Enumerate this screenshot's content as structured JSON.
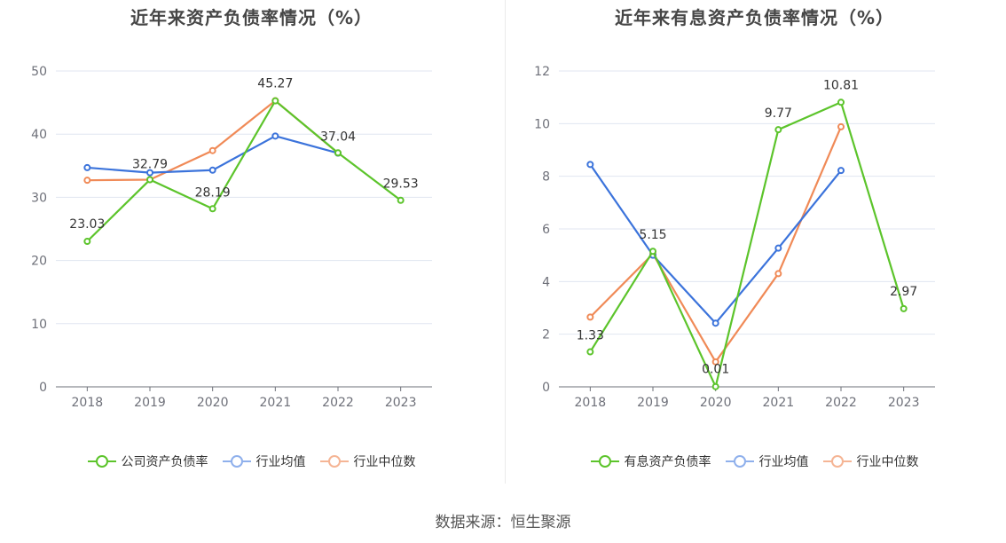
{
  "source": "数据来源：恒生聚源",
  "chart_data": [
    {
      "type": "line",
      "title": "近年来资产负债率情况（%）",
      "categories": [
        "2018",
        "2019",
        "2020",
        "2021",
        "2022",
        "2023"
      ],
      "ylim": [
        0,
        50
      ],
      "yticks": [
        0,
        10,
        20,
        30,
        40,
        50
      ],
      "series": [
        {
          "name": "公司资产负债率",
          "color": "#5cc42b",
          "values": [
            23.03,
            32.79,
            28.19,
            45.27,
            37.04,
            29.53
          ],
          "labels": [
            "23.03",
            "32.79",
            "28.19",
            "45.27",
            "37.04",
            "29.53"
          ]
        },
        {
          "name": "行业均值",
          "color": "#3b73db",
          "values": [
            34.7,
            33.9,
            34.3,
            39.7,
            37.0,
            null
          ]
        },
        {
          "name": "行业中位数",
          "color": "#f08a57",
          "values": [
            32.7,
            32.8,
            37.4,
            45.3,
            37.0,
            null
          ]
        }
      ]
    },
    {
      "type": "line",
      "title": "近年来有息资产负债率情况（%）",
      "categories": [
        "2018",
        "2019",
        "2020",
        "2021",
        "2022",
        "2023"
      ],
      "ylim": [
        0,
        12
      ],
      "yticks": [
        0,
        2,
        4,
        6,
        8,
        10,
        12
      ],
      "series": [
        {
          "name": "有息资产负债率",
          "color": "#5cc42b",
          "values": [
            1.33,
            5.15,
            0.01,
            9.77,
            10.81,
            2.97
          ],
          "labels": [
            "1.33",
            "5.15",
            "0.01",
            "9.77",
            "10.81",
            "2.97"
          ]
        },
        {
          "name": "行业均值",
          "color": "#3b73db",
          "values": [
            8.45,
            5.0,
            2.42,
            5.27,
            8.22,
            null
          ]
        },
        {
          "name": "行业中位数",
          "color": "#f08a57",
          "values": [
            2.65,
            5.05,
            0.95,
            4.3,
            9.88,
            null
          ]
        }
      ]
    }
  ]
}
